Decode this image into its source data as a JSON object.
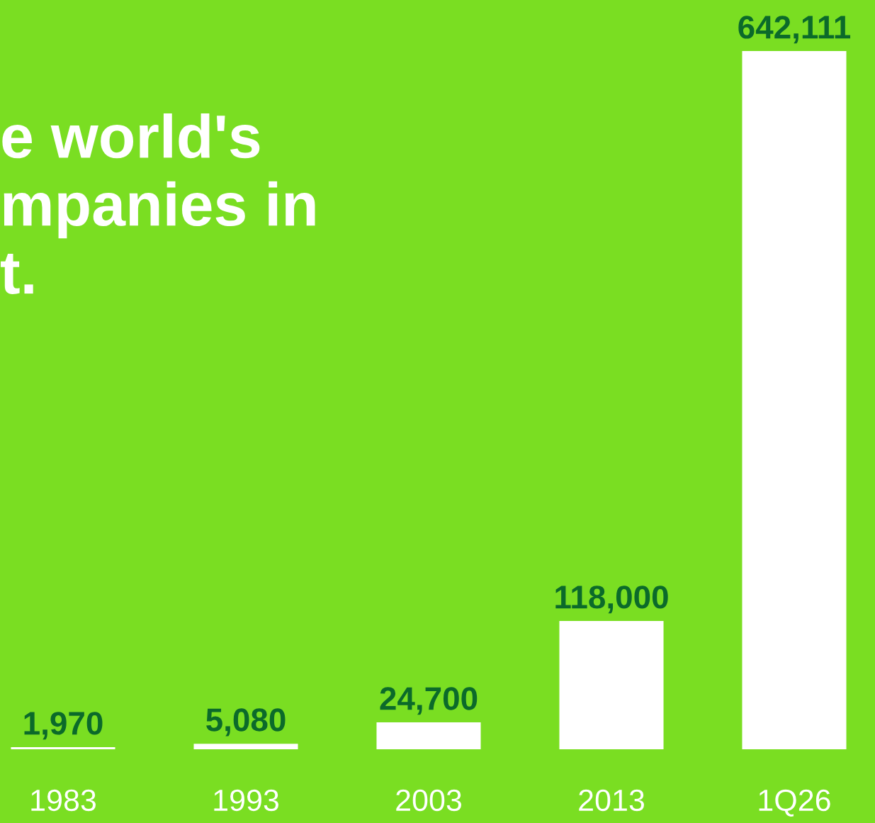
{
  "chart_data": {
    "type": "bar",
    "title": "e world's\nmpanies in\nt.",
    "categories": [
      "1983",
      "1993",
      "2003",
      "2013",
      "1Q26"
    ],
    "values": [
      1970,
      5080,
      24700,
      118000,
      642111
    ],
    "value_labels": [
      "1,970",
      "5,080",
      "24,700",
      "118,000",
      "642,111"
    ],
    "color": "#ffffff",
    "grid": false
  }
}
